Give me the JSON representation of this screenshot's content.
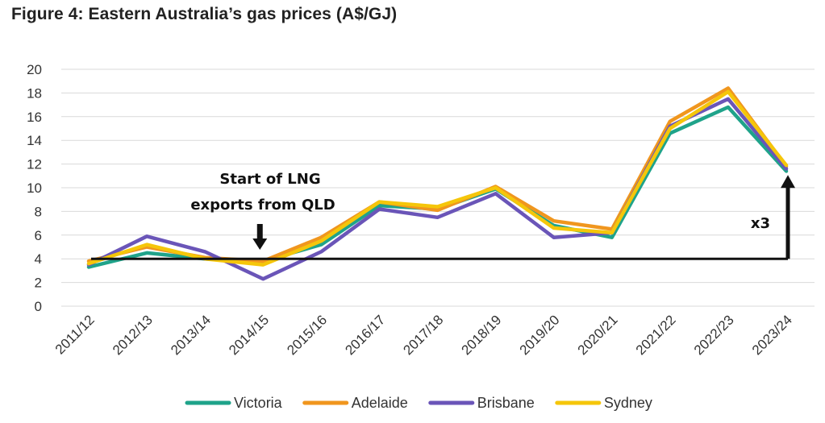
{
  "title": "Figure 4: Eastern Australia’s gas prices (A$/GJ)",
  "chart_data": {
    "type": "line",
    "title": "Figure 4: Eastern Australia’s gas prices (A$/GJ)",
    "categories": [
      "2011/12",
      "2012/13",
      "2013/14",
      "2014/15",
      "2015/16",
      "2016/17",
      "2017/18",
      "2018/19",
      "2019/20",
      "2020/21",
      "2021/22",
      "2022/23",
      "2023/24"
    ],
    "ylim": [
      0,
      20
    ],
    "yticks": [
      0,
      2,
      4,
      6,
      8,
      10,
      12,
      14,
      16,
      18,
      20
    ],
    "grid": true,
    "legend_position": "bottom",
    "series": [
      {
        "name": "Victoria",
        "color": "#1FA38A",
        "values": [
          3.3,
          4.5,
          4.0,
          3.8,
          5.2,
          8.5,
          8.2,
          9.9,
          6.8,
          5.8,
          14.6,
          16.8,
          11.4
        ]
      },
      {
        "name": "Adelaide",
        "color": "#F0961E",
        "values": [
          3.8,
          5.0,
          4.1,
          3.8,
          5.8,
          8.8,
          8.1,
          10.1,
          7.2,
          6.5,
          15.6,
          18.4,
          11.8
        ]
      },
      {
        "name": "Brisbane",
        "color": "#6A55B8",
        "values": [
          3.5,
          5.9,
          4.6,
          2.3,
          4.6,
          8.2,
          7.5,
          9.5,
          5.8,
          6.2,
          15.2,
          17.5,
          11.6
        ]
      },
      {
        "name": "Sydney",
        "color": "#F5C60A",
        "values": [
          3.6,
          5.2,
          4.0,
          3.5,
          5.5,
          8.8,
          8.4,
          10.0,
          6.6,
          6.2,
          15.0,
          18.1,
          11.9
        ]
      }
    ],
    "annotations": {
      "lng_text_line1": "Start of LNG",
      "lng_text_line2": "exports from QLD",
      "baseline_value": 4.0,
      "arrow_category": "2014/15",
      "multiplier_label": "x3",
      "multiplier_top_value": 10.8
    }
  }
}
